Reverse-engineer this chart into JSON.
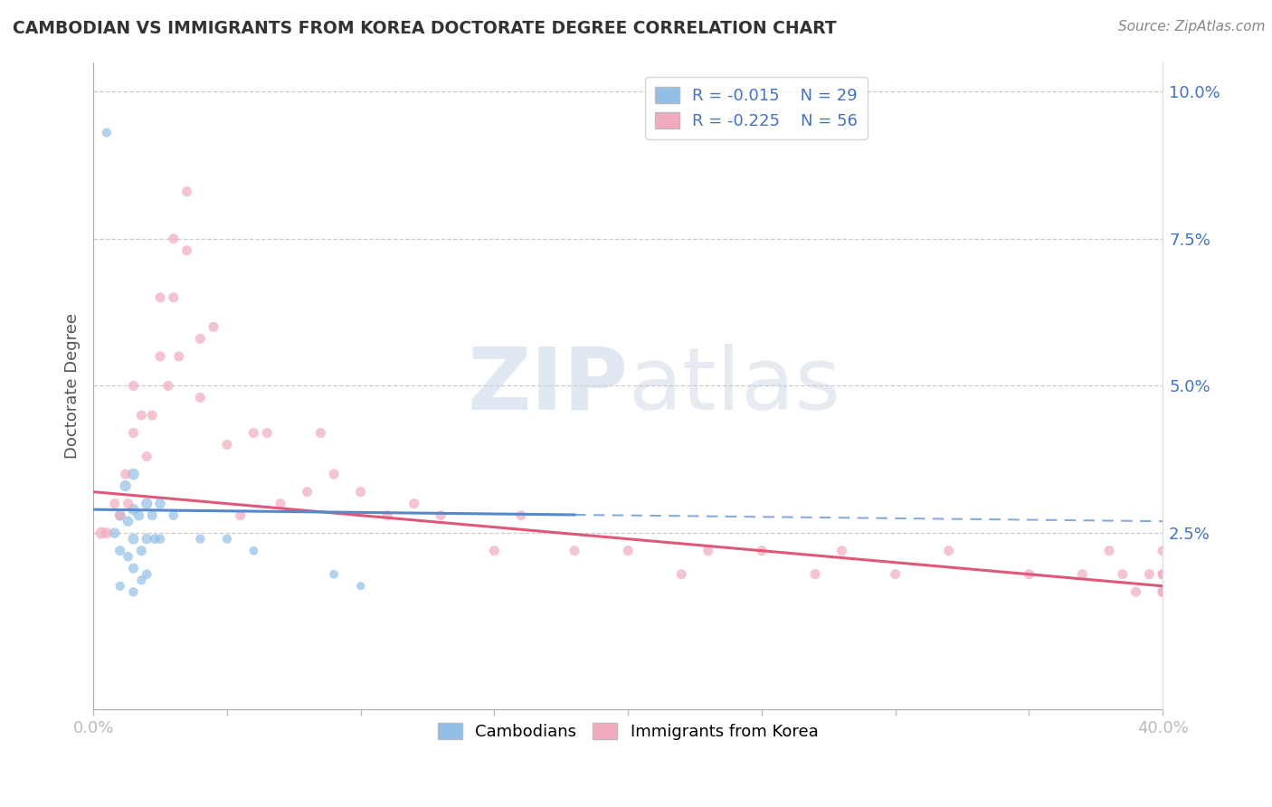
{
  "title": "CAMBODIAN VS IMMIGRANTS FROM KOREA DOCTORATE DEGREE CORRELATION CHART",
  "source": "Source: ZipAtlas.com",
  "ylabel": "Doctorate Degree",
  "xlim": [
    0.0,
    0.4
  ],
  "ylim": [
    -0.005,
    0.105
  ],
  "xticks": [
    0.0,
    0.05,
    0.1,
    0.15,
    0.2,
    0.25,
    0.3,
    0.35,
    0.4
  ],
  "yticks_right": [
    0.025,
    0.05,
    0.075,
    0.1
  ],
  "ytick_labels_right": [
    "2.5%",
    "5.0%",
    "7.5%",
    "10.0%"
  ],
  "blue_color": "#92BFE8",
  "pink_color": "#F2ABBE",
  "blue_line_color": "#5588CC",
  "pink_line_color": "#E05878",
  "legend_R_blue": "R = -0.015",
  "legend_N_blue": "N = 29",
  "legend_R_pink": "R = -0.225",
  "legend_N_pink": "N = 56",
  "watermark_zip": "ZIP",
  "watermark_atlas": "atlas",
  "background_color": "#FFFFFF",
  "grid_color": "#CCCCCC",
  "cambodian_x": [
    0.005,
    0.008,
    0.01,
    0.01,
    0.01,
    0.012,
    0.013,
    0.013,
    0.015,
    0.015,
    0.015,
    0.015,
    0.015,
    0.017,
    0.018,
    0.018,
    0.02,
    0.02,
    0.02,
    0.022,
    0.023,
    0.025,
    0.025,
    0.03,
    0.04,
    0.05,
    0.06,
    0.09,
    0.1
  ],
  "cambodian_y": [
    0.093,
    0.025,
    0.028,
    0.022,
    0.016,
    0.033,
    0.027,
    0.021,
    0.035,
    0.029,
    0.024,
    0.019,
    0.015,
    0.028,
    0.022,
    0.017,
    0.03,
    0.024,
    0.018,
    0.028,
    0.024,
    0.03,
    0.024,
    0.028,
    0.024,
    0.024,
    0.022,
    0.018,
    0.016
  ],
  "cambodian_size": [
    55,
    70,
    75,
    65,
    55,
    80,
    70,
    60,
    85,
    80,
    75,
    65,
    55,
    70,
    65,
    55,
    80,
    70,
    60,
    65,
    60,
    70,
    60,
    60,
    55,
    55,
    50,
    50,
    45
  ],
  "korea_x": [
    0.003,
    0.005,
    0.008,
    0.01,
    0.012,
    0.013,
    0.015,
    0.015,
    0.018,
    0.02,
    0.022,
    0.025,
    0.025,
    0.028,
    0.03,
    0.03,
    0.032,
    0.035,
    0.035,
    0.04,
    0.04,
    0.045,
    0.05,
    0.055,
    0.06,
    0.065,
    0.07,
    0.08,
    0.085,
    0.09,
    0.1,
    0.11,
    0.12,
    0.13,
    0.15,
    0.16,
    0.18,
    0.2,
    0.22,
    0.23,
    0.25,
    0.27,
    0.28,
    0.3,
    0.32,
    0.35,
    0.37,
    0.38,
    0.385,
    0.39,
    0.395,
    0.4,
    0.4,
    0.4,
    0.4,
    0.4
  ],
  "korea_y": [
    0.025,
    0.025,
    0.03,
    0.028,
    0.035,
    0.03,
    0.05,
    0.042,
    0.045,
    0.038,
    0.045,
    0.065,
    0.055,
    0.05,
    0.075,
    0.065,
    0.055,
    0.083,
    0.073,
    0.058,
    0.048,
    0.06,
    0.04,
    0.028,
    0.042,
    0.042,
    0.03,
    0.032,
    0.042,
    0.035,
    0.032,
    0.028,
    0.03,
    0.028,
    0.022,
    0.028,
    0.022,
    0.022,
    0.018,
    0.022,
    0.022,
    0.018,
    0.022,
    0.018,
    0.022,
    0.018,
    0.018,
    0.022,
    0.018,
    0.015,
    0.018,
    0.022,
    0.018,
    0.015,
    0.018,
    0.015
  ],
  "korea_size": [
    90,
    75,
    65,
    65,
    65,
    65,
    65,
    65,
    65,
    65,
    65,
    65,
    65,
    65,
    65,
    65,
    65,
    65,
    65,
    65,
    65,
    65,
    65,
    65,
    65,
    65,
    65,
    65,
    65,
    65,
    65,
    65,
    65,
    65,
    65,
    65,
    65,
    65,
    65,
    65,
    65,
    65,
    65,
    65,
    65,
    65,
    65,
    65,
    65,
    65,
    65,
    65,
    65,
    65,
    65,
    65
  ],
  "blue_line_x_solid_end": 0.18,
  "blue_line_y_start": 0.029,
  "blue_line_y_end": 0.027,
  "pink_line_y_start": 0.032,
  "pink_line_y_end": 0.016
}
